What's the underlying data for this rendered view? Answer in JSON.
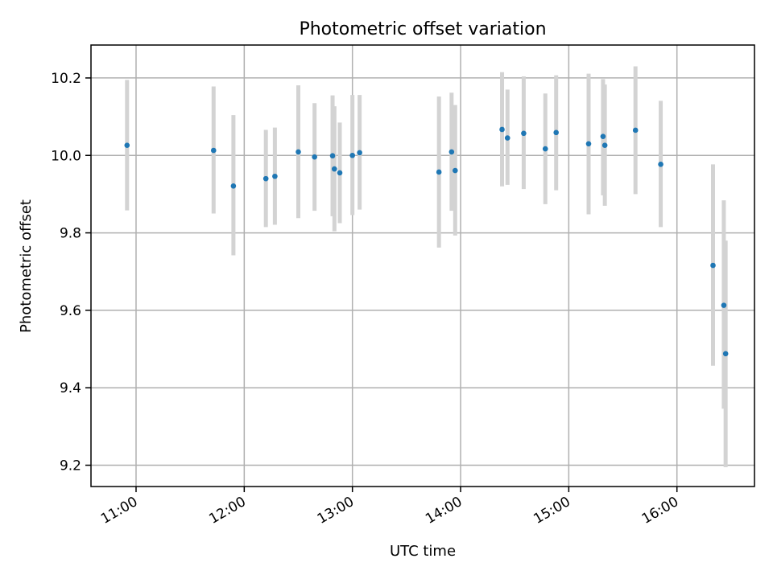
{
  "chart_data": {
    "type": "scatter",
    "title": "Photometric offset variation",
    "xlabel": "UTC time",
    "ylabel": "Photometric offset",
    "x_unit": "hours UTC",
    "xlim": [
      "10:35",
      "16:43"
    ],
    "ylim": [
      9.145,
      10.285
    ],
    "xticks": [
      {
        "label": "11:00",
        "value": "11:00"
      },
      {
        "label": "12:00",
        "value": "12:00"
      },
      {
        "label": "13:00",
        "value": "13:00"
      },
      {
        "label": "14:00",
        "value": "14:00"
      },
      {
        "label": "15:00",
        "value": "15:00"
      },
      {
        "label": "16:00",
        "value": "16:00"
      }
    ],
    "yticks": [
      {
        "label": "9.2",
        "value": 9.2
      },
      {
        "label": "9.4",
        "value": 9.4
      },
      {
        "label": "9.6",
        "value": 9.6
      },
      {
        "label": "9.8",
        "value": 9.8
      },
      {
        "label": "10.0",
        "value": 10.0
      },
      {
        "label": "10.2",
        "value": 10.2
      }
    ],
    "grid": true,
    "point_color": "#1f77b4",
    "errorbar_color": "#d3d3d3",
    "points": [
      {
        "x": "10:55",
        "y": 10.026,
        "lo": 9.858,
        "hi": 10.195
      },
      {
        "x": "11:43",
        "y": 10.013,
        "lo": 9.85,
        "hi": 10.178
      },
      {
        "x": "11:54",
        "y": 9.921,
        "lo": 9.742,
        "hi": 10.104
      },
      {
        "x": "12:12",
        "y": 9.94,
        "lo": 9.815,
        "hi": 10.066
      },
      {
        "x": "12:17",
        "y": 9.946,
        "lo": 9.821,
        "hi": 10.072
      },
      {
        "x": "12:30",
        "y": 10.009,
        "lo": 9.838,
        "hi": 10.181
      },
      {
        "x": "12:39",
        "y": 9.996,
        "lo": 9.857,
        "hi": 10.135
      },
      {
        "x": "12:49",
        "y": 9.999,
        "lo": 9.843,
        "hi": 10.155
      },
      {
        "x": "12:50",
        "y": 9.965,
        "lo": 9.804,
        "hi": 10.127
      },
      {
        "x": "12:53",
        "y": 9.955,
        "lo": 9.825,
        "hi": 10.085
      },
      {
        "x": "13:00",
        "y": 10.0,
        "lo": 9.846,
        "hi": 10.156
      },
      {
        "x": "13:04",
        "y": 10.007,
        "lo": 9.86,
        "hi": 10.156
      },
      {
        "x": "13:48",
        "y": 9.957,
        "lo": 9.762,
        "hi": 10.152
      },
      {
        "x": "13:55",
        "y": 10.009,
        "lo": 9.857,
        "hi": 10.162
      },
      {
        "x": "13:57",
        "y": 9.961,
        "lo": 9.793,
        "hi": 10.13
      },
      {
        "x": "14:23",
        "y": 10.067,
        "lo": 9.92,
        "hi": 10.215
      },
      {
        "x": "14:26",
        "y": 10.045,
        "lo": 9.924,
        "hi": 10.17
      },
      {
        "x": "14:35",
        "y": 10.057,
        "lo": 9.913,
        "hi": 10.204
      },
      {
        "x": "14:47",
        "y": 10.017,
        "lo": 9.874,
        "hi": 10.16
      },
      {
        "x": "14:53",
        "y": 10.059,
        "lo": 9.91,
        "hi": 10.207
      },
      {
        "x": "15:11",
        "y": 10.03,
        "lo": 9.848,
        "hi": 10.211
      },
      {
        "x": "15:19",
        "y": 10.049,
        "lo": 9.897,
        "hi": 10.197
      },
      {
        "x": "15:20",
        "y": 10.026,
        "lo": 9.87,
        "hi": 10.183
      },
      {
        "x": "15:37",
        "y": 10.065,
        "lo": 9.9,
        "hi": 10.23
      },
      {
        "x": "15:51",
        "y": 9.977,
        "lo": 9.815,
        "hi": 10.141
      },
      {
        "x": "16:20",
        "y": 9.716,
        "lo": 9.457,
        "hi": 9.977
      },
      {
        "x": "16:26",
        "y": 9.613,
        "lo": 9.346,
        "hi": 9.884
      },
      {
        "x": "16:27",
        "y": 9.488,
        "lo": 9.195,
        "hi": 9.78
      }
    ]
  }
}
